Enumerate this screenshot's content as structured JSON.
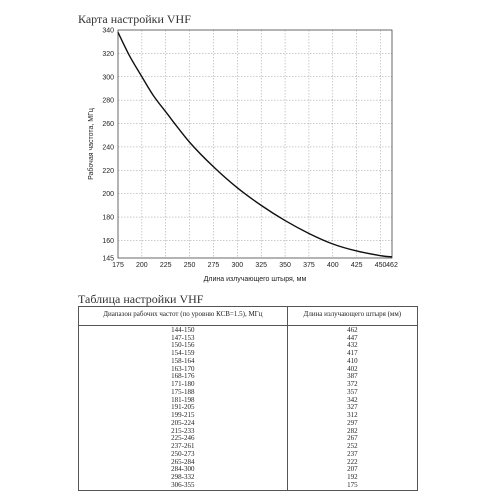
{
  "chart_title": "Карта настройки VHF",
  "table_title": "Таблица настройки VHF",
  "chart_data": {
    "type": "line",
    "title": "Карта настройки VHF",
    "xlabel": "Длина излучающего штыря, мм",
    "ylabel": "Рабочая частота, МГц",
    "xlim": [
      175,
      462
    ],
    "ylim": [
      145,
      340
    ],
    "x_ticks": [
      "175",
      "200",
      "225",
      "250",
      "275",
      "300",
      "325",
      "350",
      "375",
      "400",
      "425",
      "450",
      "462"
    ],
    "y_ticks": [
      "145",
      "160",
      "180",
      "200",
      "220",
      "240",
      "260",
      "280",
      "300",
      "320",
      "340"
    ],
    "grid": true,
    "series": [
      {
        "x": [
          175,
          187,
          200,
          212,
          225,
          250,
          275,
          300,
          325,
          350,
          375,
          400,
          425,
          450,
          462
        ],
        "y": [
          338,
          318,
          300,
          284,
          270,
          244,
          223,
          205,
          190,
          177,
          166,
          157,
          151,
          147,
          146
        ]
      }
    ]
  },
  "table": {
    "headers": [
      "Диапазон рабочих частот (по уровню КСВ=1.5), МГц",
      "Длина излучающего штыря (мм)"
    ],
    "rows": [
      [
        "144-150",
        "462"
      ],
      [
        "147-153",
        "447"
      ],
      [
        "150-156",
        "432"
      ],
      [
        "154-159",
        "417"
      ],
      [
        "158-164",
        "410"
      ],
      [
        "163-170",
        "402"
      ],
      [
        "168-176",
        "387"
      ],
      [
        "171-180",
        "372"
      ],
      [
        "175-188",
        "357"
      ],
      [
        "181-198",
        "342"
      ],
      [
        "191-205",
        "327"
      ],
      [
        "199-215",
        "312"
      ],
      [
        "205-224",
        "297"
      ],
      [
        "215-233",
        "282"
      ],
      [
        "225-246",
        "267"
      ],
      [
        "237-261",
        "252"
      ],
      [
        "250-273",
        "237"
      ],
      [
        "265-284",
        "222"
      ],
      [
        "284-300",
        "207"
      ],
      [
        "298-332",
        "192"
      ],
      [
        "306-355",
        "175"
      ]
    ]
  }
}
